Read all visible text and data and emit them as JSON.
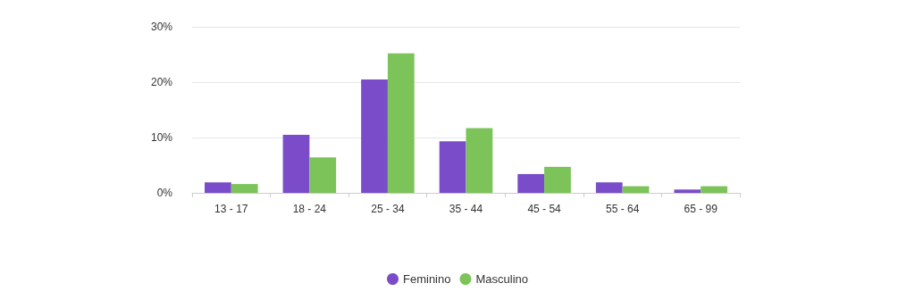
{
  "chart_data": {
    "type": "bar",
    "categories": [
      "13 - 17",
      "18 - 24",
      "25 - 34",
      "35 - 44",
      "45 - 54",
      "55 - 64",
      "65 - 99"
    ],
    "series": [
      {
        "name": "Feminino",
        "color": "#7a4cc9",
        "values": [
          1.9,
          10.5,
          20.5,
          9.3,
          3.4,
          1.9,
          0.6
        ]
      },
      {
        "name": "Masculino",
        "color": "#7cc35a",
        "values": [
          1.6,
          6.4,
          25.2,
          11.7,
          4.7,
          1.2,
          1.2
        ]
      }
    ],
    "ylim": [
      0,
      30
    ],
    "yticks": [
      {
        "value": 0,
        "label": "0%"
      },
      {
        "value": 10,
        "label": "10%"
      },
      {
        "value": 20,
        "label": "20%"
      },
      {
        "value": 30,
        "label": "30%"
      }
    ],
    "grid": "y",
    "legend": "bottom"
  }
}
